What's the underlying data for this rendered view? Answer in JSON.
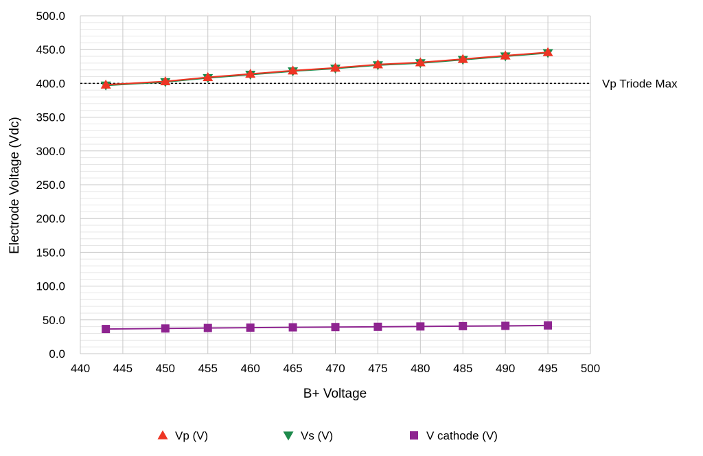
{
  "chart_data": {
    "type": "line",
    "xlabel": "B+ Voltage",
    "ylabel": "Electrode Voltage (Vdc)",
    "xlim": [
      440,
      500
    ],
    "ylim": [
      0,
      500
    ],
    "x_ticks": [
      "440",
      "445",
      "450",
      "455",
      "460",
      "465",
      "470",
      "475",
      "480",
      "485",
      "490",
      "495",
      "500"
    ],
    "y_ticks": [
      "0.0",
      "50.0",
      "100.0",
      "150.0",
      "200.0",
      "250.0",
      "300.0",
      "350.0",
      "400.0",
      "450.0",
      "500.0"
    ],
    "grid": true,
    "legend_position": "bottom",
    "x": [
      443,
      450,
      455,
      460,
      465,
      470,
      475,
      480,
      485,
      490,
      495
    ],
    "series": [
      {
        "name": "Vp (V)",
        "color": "#ee3524",
        "marker": "triangle-up",
        "values": [
          398,
          403,
          409,
          414,
          419,
          423,
          428,
          431,
          436,
          441,
          446
        ]
      },
      {
        "name": "Vs (V)",
        "color": "#1e8a4c",
        "marker": "triangle-down",
        "values": [
          397,
          402,
          408,
          413,
          418,
          422,
          427,
          430,
          435,
          440,
          445
        ]
      },
      {
        "name": "V cathode (V)",
        "color": "#8e2490",
        "marker": "square",
        "values": [
          36.5,
          37.3,
          38.0,
          38.5,
          39.0,
          39.4,
          39.8,
          40.3,
          40.8,
          41.2,
          41.8
        ]
      }
    ],
    "reference_line": {
      "label": "Vp Triode Max",
      "value": 400
    }
  }
}
